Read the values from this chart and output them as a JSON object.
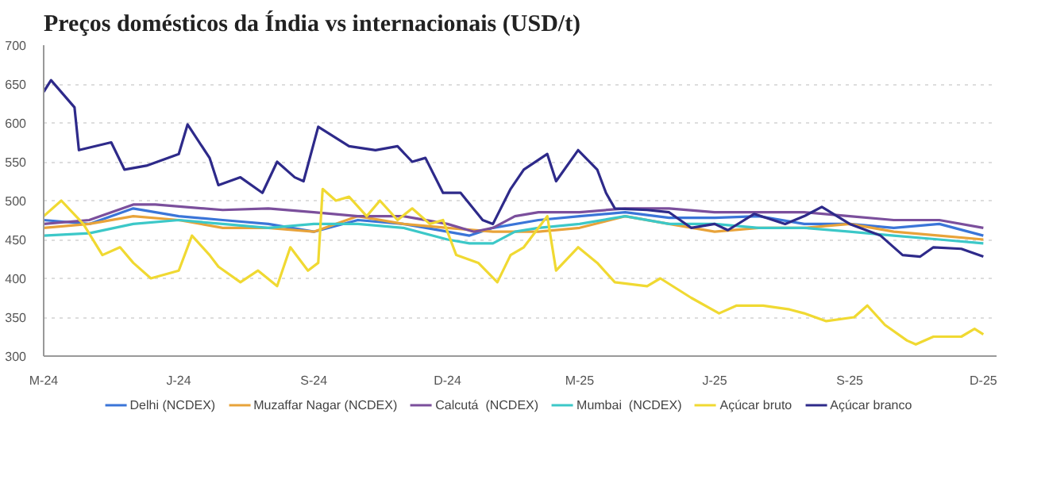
{
  "chart_data": {
    "type": "line",
    "title": "Preços domésticos da Índia vs internacionais (USD/t)",
    "xlim": [
      "2024-03",
      "2025-12-10"
    ],
    "xticks": [
      {
        "value": "2024-03",
        "label": "M-24"
      },
      {
        "value": "2024-06",
        "label": "J-24"
      },
      {
        "value": "2024-09",
        "label": "S-24"
      },
      {
        "value": "2024-12",
        "label": "D-24"
      },
      {
        "value": "2025-03",
        "label": "M-25"
      },
      {
        "value": "2025-06",
        "label": "J-25"
      },
      {
        "value": "2025-09",
        "label": "S-25"
      },
      {
        "value": "2025-12",
        "label": "D-25"
      }
    ],
    "ylim": [
      300,
      700
    ],
    "yticks": [
      300,
      350,
      400,
      450,
      500,
      550,
      600,
      650,
      700
    ],
    "grid": "y",
    "legend": "bottom",
    "marker": "none",
    "line_style": "solid",
    "series": [
      {
        "name": "Delhi (NCDEX)",
        "color": "#3a75d8",
        "x": [
          "2024-03",
          "2024-04",
          "2024-05",
          "2024-06",
          "2024-07",
          "2024-08",
          "2024-09",
          "2024-10",
          "2024-11",
          "2024-12",
          "2024-12-16",
          "2025-01",
          "2025-02",
          "2025-03",
          "2025-04",
          "2025-05",
          "2025-06",
          "2025-07",
          "2025-08",
          "2025-09",
          "2025-10",
          "2025-11",
          "2025-12"
        ],
        "values": [
          475,
          470,
          490,
          480,
          475,
          470,
          460,
          475,
          470,
          460,
          455,
          465,
          475,
          480,
          485,
          478,
          478,
          480,
          470,
          470,
          465,
          470,
          455
        ]
      },
      {
        "name": "Muzaffar Nagar (NCDEX)",
        "color": "#e8a33a",
        "x": [
          "2024-03",
          "2024-04",
          "2024-05",
          "2024-06",
          "2024-07",
          "2024-08",
          "2024-09",
          "2024-10",
          "2024-11",
          "2024-12",
          "2025-01",
          "2025-02",
          "2025-03",
          "2025-04",
          "2025-05",
          "2025-06",
          "2025-07",
          "2025-08",
          "2025-09",
          "2025-10",
          "2025-11",
          "2025-12"
        ],
        "values": [
          465,
          470,
          480,
          475,
          465,
          465,
          460,
          480,
          470,
          465,
          460,
          460,
          465,
          480,
          470,
          460,
          465,
          465,
          470,
          460,
          455,
          450
        ]
      },
      {
        "name": "Calcutá  (NCDEX)",
        "color": "#7b4f9c",
        "x": [
          "2024-03",
          "2024-04",
          "2024-05",
          "2024-05-16",
          "2024-07",
          "2024-08",
          "2024-09",
          "2024-10",
          "2024-11",
          "2024-12",
          "2024-12-19",
          "2025-01",
          "2025-01-16",
          "2025-02",
          "2025-03",
          "2025-04",
          "2025-05",
          "2025-06",
          "2025-07",
          "2025-08",
          "2025-09",
          "2025-10",
          "2025-11",
          "2025-12"
        ],
        "values": [
          470,
          475,
          495,
          495,
          488,
          490,
          485,
          480,
          480,
          470,
          460,
          465,
          480,
          485,
          485,
          490,
          490,
          485,
          485,
          485,
          480,
          475,
          475,
          465
        ]
      },
      {
        "name": "Mumbai  (NCDEX)",
        "color": "#3cc8c8",
        "x": [
          "2024-03",
          "2024-04",
          "2024-05",
          "2024-06",
          "2024-07",
          "2024-08",
          "2024-09",
          "2024-10",
          "2024-11",
          "2024-12",
          "2024-12-16",
          "2025-01",
          "2025-01-16",
          "2025-02",
          "2025-03",
          "2025-04",
          "2025-05",
          "2025-06",
          "2025-07",
          "2025-08",
          "2025-09",
          "2025-10",
          "2025-11",
          "2025-12"
        ],
        "values": [
          455,
          458,
          470,
          475,
          470,
          465,
          470,
          470,
          465,
          450,
          445,
          445,
          460,
          465,
          470,
          480,
          470,
          470,
          465,
          465,
          460,
          455,
          450,
          445
        ]
      },
      {
        "name": "Açúcar bruto",
        "color": "#f0d932",
        "x": [
          "2024-03",
          "2024-03-13",
          "2024-03-28",
          "2024-04-10",
          "2024-04-22",
          "2024-05",
          "2024-05-13",
          "2024-06",
          "2024-06-10",
          "2024-06-22",
          "2024-06-28",
          "2024-07-13",
          "2024-07-25",
          "2024-08-07",
          "2024-08-16",
          "2024-08-28",
          "2024-09-04",
          "2024-09-07",
          "2024-09-16",
          "2024-09-25",
          "2024-10-07",
          "2024-10-16",
          "2024-10-28",
          "2024-11-07",
          "2024-11-19",
          "2024-11-28",
          "2024-12-07",
          "2024-12-22",
          "2025-01-04",
          "2025-01-13",
          "2025-01-22",
          "2025-02",
          "2025-02-07",
          "2025-02-13",
          "2025-02-28",
          "2025-03-13",
          "2025-03-25",
          "2025-04-16",
          "2025-04-25",
          "2025-05-16",
          "2025-06-04",
          "2025-06-16",
          "2025-07-04",
          "2025-07-22",
          "2025-08",
          "2025-08-16",
          "2025-09-04",
          "2025-09-13",
          "2025-09-25",
          "2025-10-10",
          "2025-10-16",
          "2025-10-28",
          "2025-11-16",
          "2025-11-25",
          "2025-12"
        ],
        "values": [
          480,
          500,
          470,
          430,
          440,
          420,
          400,
          410,
          455,
          430,
          415,
          395,
          410,
          390,
          440,
          410,
          420,
          515,
          500,
          505,
          480,
          500,
          475,
          490,
          470,
          475,
          430,
          420,
          395,
          430,
          440,
          465,
          480,
          410,
          440,
          420,
          395,
          390,
          400,
          375,
          355,
          365,
          365,
          360,
          355,
          345,
          350,
          365,
          340,
          320,
          315,
          325,
          325,
          335,
          328
        ]
      },
      {
        "name": "Açúcar branco",
        "color": "#2e2a8a",
        "x": [
          "2024-03",
          "2024-03-06",
          "2024-03-22",
          "2024-03-25",
          "2024-04-16",
          "2024-04-25",
          "2024-05-10",
          "2024-06",
          "2024-06-07",
          "2024-06-22",
          "2024-06-28",
          "2024-07-13",
          "2024-07-28",
          "2024-08-07",
          "2024-08-19",
          "2024-08-25",
          "2024-09-04",
          "2024-09-25",
          "2024-10-13",
          "2024-10-28",
          "2024-11-07",
          "2024-11-16",
          "2024-11-28",
          "2024-12-10",
          "2024-12-25",
          "2025-01",
          "2025-01-13",
          "2025-01-22",
          "2025-02-07",
          "2025-02-13",
          "2025-02-28",
          "2025-03-13",
          "2025-03-19",
          "2025-03-25",
          "2025-04-16",
          "2025-05",
          "2025-05-16",
          "2025-06",
          "2025-06-10",
          "2025-06-28",
          "2025-07-19",
          "2025-08",
          "2025-08-13",
          "2025-09",
          "2025-09-22",
          "2025-10-07",
          "2025-10-19",
          "2025-10-28",
          "2025-11-16",
          "2025-12"
        ],
        "values": [
          640,
          655,
          620,
          565,
          575,
          540,
          545,
          560,
          598,
          555,
          520,
          530,
          510,
          550,
          530,
          525,
          595,
          570,
          565,
          570,
          550,
          555,
          510,
          510,
          475,
          470,
          515,
          540,
          560,
          525,
          565,
          540,
          510,
          490,
          488,
          485,
          465,
          470,
          462,
          483,
          470,
          480,
          492,
          470,
          455,
          430,
          428,
          440,
          438,
          428
        ]
      }
    ]
  }
}
